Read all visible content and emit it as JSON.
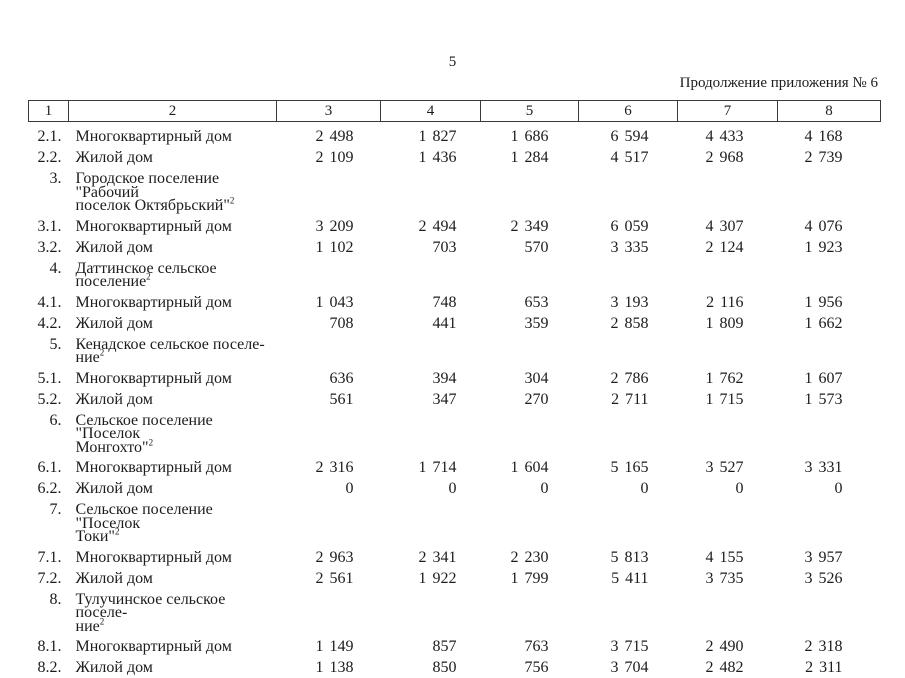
{
  "page": {
    "number": "5",
    "continuation": "Продолжение приложения № 6"
  },
  "table": {
    "header": [
      "1",
      "2",
      "3",
      "4",
      "5",
      "6",
      "7",
      "8"
    ],
    "rows": [
      {
        "num": "2.1.",
        "lines": [
          "Многоквартирный дом"
        ],
        "sup": "",
        "values": [
          "2 498",
          "1 827",
          "1 686",
          "6 594",
          "4 433",
          "4 168"
        ]
      },
      {
        "num": "2.2.",
        "lines": [
          "Жилой дом"
        ],
        "sup": "",
        "values": [
          "2 109",
          "1 436",
          "1 284",
          "4 517",
          "2 968",
          "2 739"
        ]
      },
      {
        "num": "3.",
        "lines": [
          "Городское поселение \"Рабочий",
          "поселок Октябрьский\""
        ],
        "sup": "2",
        "values": [
          "",
          "",
          "",
          "",
          "",
          ""
        ]
      },
      {
        "num": "3.1.",
        "lines": [
          "Многоквартирный дом"
        ],
        "sup": "",
        "values": [
          "3 209",
          "2 494",
          "2 349",
          "6 059",
          "4 307",
          "4 076"
        ]
      },
      {
        "num": "3.2.",
        "lines": [
          "Жилой дом"
        ],
        "sup": "",
        "values": [
          "1 102",
          "703",
          "570",
          "3 335",
          "2 124",
          "1 923"
        ]
      },
      {
        "num": "4.",
        "lines": [
          "Даттинское сельское поселение"
        ],
        "sup": "2",
        "values": [
          "",
          "",
          "",
          "",
          "",
          ""
        ]
      },
      {
        "num": "4.1.",
        "lines": [
          "Многоквартирный дом"
        ],
        "sup": "",
        "values": [
          "1 043",
          "748",
          "653",
          "3 193",
          "2 116",
          "1 956"
        ]
      },
      {
        "num": "4.2.",
        "lines": [
          "Жилой дом"
        ],
        "sup": "",
        "values": [
          "708",
          "441",
          "359",
          "2 858",
          "1 809",
          "1 662"
        ]
      },
      {
        "num": "5.",
        "lines": [
          "Кенадское сельское поселе-",
          "ние"
        ],
        "sup": "2",
        "values": [
          "",
          "",
          "",
          "",
          "",
          ""
        ]
      },
      {
        "num": "5.1.",
        "lines": [
          "Многоквартирный дом"
        ],
        "sup": "",
        "values": [
          "636",
          "394",
          "304",
          "2 786",
          "1 762",
          "1 607"
        ]
      },
      {
        "num": "5.2.",
        "lines": [
          "Жилой дом"
        ],
        "sup": "",
        "values": [
          "561",
          "347",
          "270",
          "2 711",
          "1 715",
          "1 573"
        ]
      },
      {
        "num": "6.",
        "lines": [
          "Сельское поселение \"Поселок",
          "Монгохто\""
        ],
        "sup": "2",
        "values": [
          "",
          "",
          "",
          "",
          "",
          ""
        ]
      },
      {
        "num": "6.1.",
        "lines": [
          "Многоквартирный дом"
        ],
        "sup": "",
        "values": [
          "2 316",
          "1 714",
          "1 604",
          "5 165",
          "3 527",
          "3 331"
        ]
      },
      {
        "num": "6.2.",
        "lines": [
          "Жилой дом"
        ],
        "sup": "",
        "values": [
          "0",
          "0",
          "0",
          "0",
          "0",
          "0"
        ]
      },
      {
        "num": "7.",
        "lines": [
          "Сельское поселение \"Поселок",
          "Токи\""
        ],
        "sup": "2",
        "values": [
          "",
          "",
          "",
          "",
          "",
          ""
        ]
      },
      {
        "num": "7.1.",
        "lines": [
          "Многоквартирный дом"
        ],
        "sup": "",
        "values": [
          "2 963",
          "2 341",
          "2 230",
          "5 813",
          "4 155",
          "3 957"
        ]
      },
      {
        "num": "7.2.",
        "lines": [
          "Жилой дом"
        ],
        "sup": "",
        "values": [
          "2 561",
          "1 922",
          "1 799",
          "5 411",
          "3 735",
          "3 526"
        ]
      },
      {
        "num": "8.",
        "lines": [
          "Тулучинское сельское поселе-",
          "ние"
        ],
        "sup": "2",
        "values": [
          "",
          "",
          "",
          "",
          "",
          ""
        ]
      },
      {
        "num": "8.1.",
        "lines": [
          "Многоквартирный дом"
        ],
        "sup": "",
        "values": [
          "1 149",
          "857",
          "763",
          "3 715",
          "2 490",
          "2 318"
        ]
      },
      {
        "num": "8.2.",
        "lines": [
          "Жилой дом"
        ],
        "sup": "",
        "values": [
          "1 138",
          "850",
          "756",
          "3 704",
          "2 482",
          "2 311"
        ]
      }
    ]
  }
}
